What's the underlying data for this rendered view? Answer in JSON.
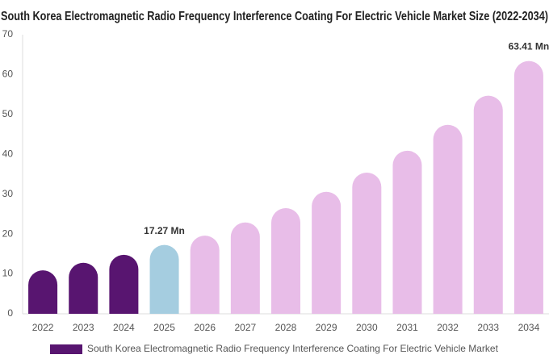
{
  "chart_data": {
    "type": "bar",
    "title": "South Korea Electromagnetic Radio Frequency Interference Coating For Electric Vehicle Market Size (2022-2034)",
    "categories": [
      "2022",
      "2023",
      "2024",
      "2025",
      "2026",
      "2027",
      "2028",
      "2029",
      "2030",
      "2031",
      "2032",
      "2033",
      "2034"
    ],
    "series": [
      {
        "name": "South Korea Electromagnetic Radio Frequency Interference Coating For Electric Vehicle Market",
        "color": "#581570",
        "colors": [
          "#581570",
          "#581570",
          "#581570",
          "#a5cde0",
          "#e8bde8",
          "#e8bde8",
          "#e8bde8",
          "#e8bde8",
          "#e8bde8",
          "#e8bde8",
          "#e8bde8",
          "#e8bde8",
          "#e8bde8"
        ],
        "values": [
          10.9,
          12.8,
          14.8,
          17.27,
          19.6,
          22.9,
          26.5,
          30.6,
          35.4,
          40.9,
          47.4,
          54.7,
          63.41
        ],
        "value_labels": [
          null,
          null,
          null,
          "17.27 Mn",
          null,
          null,
          null,
          null,
          null,
          null,
          null,
          null,
          "63.41 Mn"
        ]
      }
    ],
    "ylim": [
      0,
      70
    ],
    "yticks": [
      0,
      10,
      20,
      30,
      40,
      50,
      60,
      70
    ],
    "grid": false
  }
}
